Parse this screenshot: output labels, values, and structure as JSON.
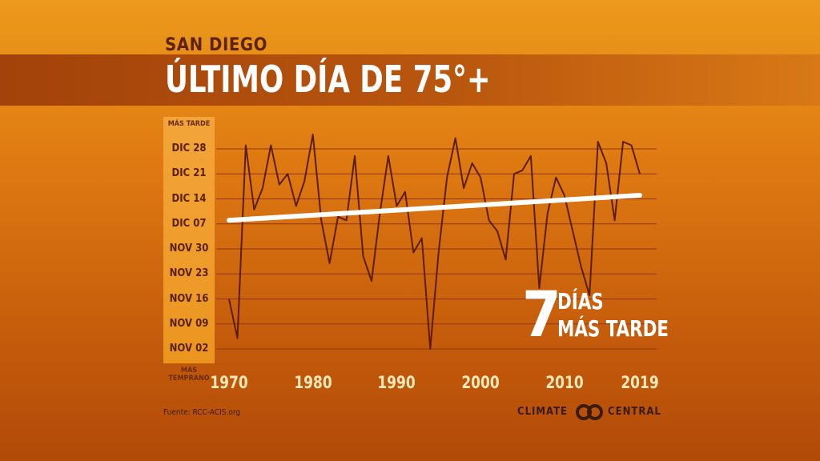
{
  "header": {
    "subtitle": "SAN DIEGO",
    "title": "ÚLTIMO DÍA DE 75°+"
  },
  "axis_end_labels": {
    "top": "MÁS TARDE",
    "bottom": "MÁS TEMPRANO"
  },
  "callout": {
    "number": "7",
    "line1": "DÍAS",
    "line2": "MÁS TARDE"
  },
  "source": "Fuente: RCC-ACIS.org",
  "logo": {
    "word1": "CLIMATE",
    "word2": "CENTRAL"
  },
  "colors": {
    "line": "#5a1d0e",
    "trend": "#ffffff",
    "grid": "#8f3510"
  },
  "chart_data": {
    "type": "line",
    "title": "ÚLTIMO DÍA DE 75°+",
    "subtitle": "SAN DIEGO",
    "x_tick_labels": [
      "1970",
      "1980",
      "1990",
      "2000",
      "2010",
      "2019"
    ],
    "x_ticks": [
      1970,
      1980,
      1990,
      2000,
      2010,
      2019
    ],
    "y_ticks": [
      "2019-11-02",
      "2019-11-09",
      "2019-11-16",
      "2019-11-23",
      "2019-11-30",
      "2019-12-07",
      "2019-12-14",
      "2019-12-21",
      "2019-12-28"
    ],
    "y_tick_labels": [
      "NOV 02",
      "NOV 09",
      "NOV 16",
      "NOV 23",
      "NOV 30",
      "DIC 07",
      "DIC 14",
      "DIC 21",
      "DIC 28"
    ],
    "grid": true,
    "series": [
      {
        "x": [
          1970,
          1971,
          1972,
          1973,
          1974,
          1975,
          1976,
          1977,
          1978,
          1979,
          1980,
          1981,
          1982,
          1983,
          1984,
          1985,
          1986,
          1987,
          1988,
          1989,
          1990,
          1991,
          1992,
          1993,
          1994,
          1995,
          1996,
          1997,
          1998,
          1999,
          2000,
          2001,
          2002,
          2003,
          2004,
          2005,
          2006,
          2007,
          2008,
          2009,
          2010,
          2011,
          2012,
          2013,
          2014,
          2015,
          2016,
          2017,
          2018,
          2019
        ],
        "y": [
          "2019-11-16",
          "2019-11-05",
          "2019-12-29",
          "2019-12-11",
          "2019-12-17",
          "2019-12-29",
          "2019-12-18",
          "2019-12-21",
          "2019-12-12",
          "2019-12-19",
          "2020-01-01",
          "2019-12-08",
          "2019-11-26",
          "2019-12-09",
          "2019-12-08",
          "2019-12-26",
          "2019-11-28",
          "2019-11-21",
          "2019-12-10",
          "2019-12-26",
          "2019-12-12",
          "2019-12-16",
          "2019-11-29",
          "2019-12-03",
          "2019-11-02",
          "2019-11-29",
          "2019-12-20",
          "2019-12-31",
          "2019-12-17",
          "2019-12-24",
          "2019-12-20",
          "2019-12-08",
          "2019-12-05",
          "2019-11-27",
          "2019-12-21",
          "2019-12-22",
          "2019-12-26",
          "2019-11-19",
          "2019-12-10",
          "2019-12-20",
          "2019-12-15",
          "2019-12-05",
          "2019-11-25",
          "2019-11-17",
          "2019-12-30",
          "2019-12-24",
          "2019-12-08",
          "2019-12-30",
          "2019-12-29",
          "2019-12-21"
        ]
      },
      {
        "x": [
          1970,
          2019
        ],
        "y": [
          "2019-12-08",
          "2019-12-15"
        ]
      }
    ]
  }
}
